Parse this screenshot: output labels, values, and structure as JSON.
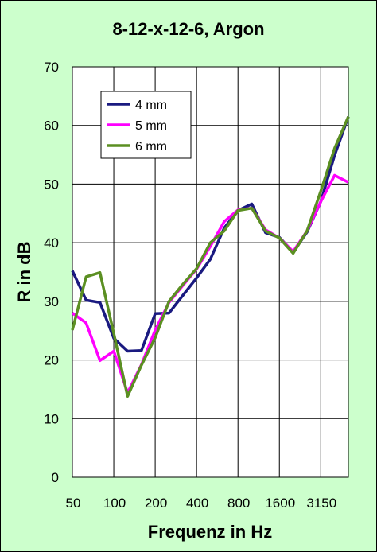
{
  "chart_data": {
    "type": "line",
    "title": "8-12-x-12-6, Argon",
    "xlabel": "Frequenz in Hz",
    "ylabel": "R in dB",
    "ylim": [
      0,
      70
    ],
    "yticks": [
      0,
      10,
      20,
      30,
      40,
      50,
      60,
      70
    ],
    "xtick_labels": [
      "50",
      "100",
      "200",
      "400",
      "800",
      "1600",
      "3150"
    ],
    "x": [
      50,
      63,
      80,
      100,
      125,
      160,
      200,
      250,
      315,
      400,
      500,
      630,
      800,
      1000,
      1250,
      1600,
      2000,
      2500,
      3150,
      4000,
      5000
    ],
    "grid": true,
    "legend_position": "top-left",
    "colors": {
      "background": "#ccffcc",
      "plot_area": "#ffffff",
      "grid": "#000000"
    },
    "series": [
      {
        "name": "4 mm",
        "color": "#1a1a80",
        "values": [
          35.2,
          30.2,
          29.8,
          23.7,
          21.5,
          21.6,
          27.9,
          28.0,
          31.0,
          34.0,
          37.2,
          42.5,
          45.5,
          46.6,
          41.7,
          40.9,
          38.4,
          41.8,
          47.0,
          54.9,
          61.5
        ]
      },
      {
        "name": "5 mm",
        "color": "#ff00ff",
        "values": [
          28.0,
          26.3,
          19.9,
          21.5,
          14.4,
          19.2,
          25.1,
          29.8,
          32.7,
          35.5,
          39.4,
          43.6,
          45.6,
          45.9,
          42.2,
          40.8,
          38.5,
          42.0,
          47.0,
          51.5,
          50.3
        ]
      },
      {
        "name": "6 mm",
        "color": "#5b8f22",
        "values": [
          25.1,
          34.2,
          34.9,
          24.5,
          13.8,
          19.1,
          23.8,
          30.0,
          32.9,
          35.6,
          40.0,
          42.0,
          45.5,
          45.9,
          42.0,
          40.8,
          38.2,
          42.0,
          48.8,
          56.1,
          61.5
        ]
      }
    ]
  }
}
